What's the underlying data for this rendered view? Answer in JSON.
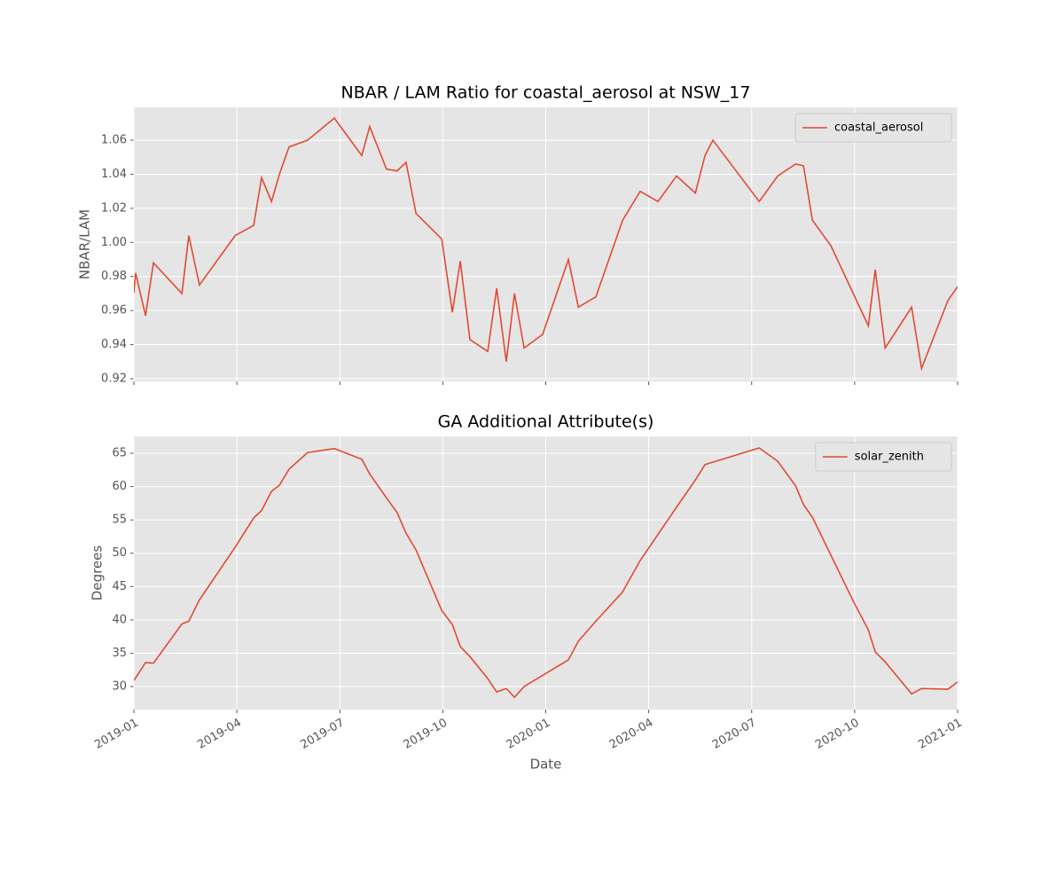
{
  "chart_data": [
    {
      "type": "line",
      "title": "NBAR / LAM Ratio for coastal_aerosol at NSW_17",
      "ylabel": "NBAR/LAM",
      "x": [
        0,
        0.05,
        0.34,
        0.57,
        1.4,
        1.6,
        1.91,
        2.95,
        3.49,
        3.72,
        4.01,
        4.24,
        4.52,
        5.06,
        5.84,
        6.64,
        6.87,
        7.36,
        7.67,
        7.93,
        8.22,
        8.97,
        9.28,
        9.51,
        9.79,
        10.31,
        10.57,
        10.85,
        11.09,
        11.37,
        11.91,
        12.66,
        12.95,
        13.46,
        14.24,
        14.75,
        15.27,
        15.81,
        16.36,
        16.64,
        16.87,
        18.22,
        18.76,
        19.28,
        19.51,
        19.77,
        20.31,
        21.4,
        21.6,
        21.89,
        22.66,
        22.95,
        23.72,
        24.0
      ],
      "series": [
        {
          "name": "coastal_aerosol",
          "color": "#e24a33",
          "values": [
            0.9705,
            0.982,
            0.957,
            0.988,
            0.97,
            1.004,
            0.975,
            1.004,
            1.01,
            1.038,
            1.024,
            1.04,
            1.056,
            1.06,
            1.073,
            1.051,
            1.068,
            1.043,
            1.042,
            1.047,
            1.017,
            1.002,
            0.959,
            0.989,
            0.943,
            0.936,
            0.973,
            0.93,
            0.97,
            0.938,
            0.946,
            0.99,
            0.962,
            0.968,
            1.013,
            1.03,
            1.024,
            1.039,
            1.029,
            1.051,
            1.06,
            1.024,
            1.039,
            1.046,
            1.045,
            1.013,
            0.998,
            0.951,
            0.984,
            0.938,
            0.962,
            0.926,
            0.966,
            0.974
          ]
        }
      ],
      "xlim": [
        0,
        24
      ],
      "ylim": [
        0.9184,
        1.0793
      ],
      "xticks": [
        0,
        3,
        6,
        9,
        12,
        15,
        18,
        21,
        24
      ],
      "yticks": [
        0.92,
        0.94,
        0.96,
        0.98,
        {
          "value": 1,
          "label": "1.00"
        },
        1.02,
        1.04,
        1.06
      ],
      "grid": true,
      "legend": "upper right"
    },
    {
      "type": "line",
      "title": "GA Additional Attribute(s)",
      "ylabel": "Degrees",
      "xlabel": "Date",
      "x": [
        0,
        0.34,
        0.57,
        1.4,
        1.6,
        1.91,
        2.95,
        3.49,
        3.72,
        4.01,
        4.24,
        4.52,
        5.06,
        5.84,
        6.64,
        6.87,
        7.36,
        7.67,
        7.93,
        8.22,
        8.97,
        9.28,
        9.51,
        9.79,
        10.31,
        10.57,
        10.85,
        11.09,
        11.37,
        12.66,
        12.95,
        13.46,
        14.24,
        14.75,
        15.81,
        16.36,
        16.64,
        18.22,
        18.76,
        19.28,
        19.51,
        19.77,
        20.98,
        21.4,
        21.6,
        21.89,
        22.66,
        22.95,
        23.72,
        24.0
      ],
      "series": [
        {
          "name": "solar_zenith",
          "color": "#e24a33",
          "values": [
            30.9,
            33.6,
            33.5,
            39.4,
            39.8,
            43.0,
            50.9,
            55.3,
            56.4,
            59.3,
            60.2,
            62.6,
            65.1,
            65.7,
            64.1,
            61.9,
            58.3,
            56.1,
            53.0,
            50.5,
            41.4,
            39.3,
            36.0,
            34.5,
            31.2,
            29.2,
            29.7,
            28.4,
            30.0,
            34.0,
            36.8,
            39.8,
            44.2,
            48.9,
            56.9,
            61.0,
            63.3,
            65.8,
            63.8,
            60.1,
            57.3,
            55.4,
            42.6,
            38.5,
            35.2,
            33.7,
            28.9,
            29.7,
            29.6,
            30.7
          ]
        }
      ],
      "xlim": [
        0,
        24
      ],
      "ylim": [
        26.54,
        67.53
      ],
      "xticks": [
        {
          "value": 0,
          "label": "2019-01"
        },
        {
          "value": 3,
          "label": "2019-04"
        },
        {
          "value": 6,
          "label": "2019-07"
        },
        {
          "value": 9,
          "label": "2019-10"
        },
        {
          "value": 12,
          "label": "2020-01"
        },
        {
          "value": 15,
          "label": "2020-04"
        },
        {
          "value": 18,
          "label": "2020-07"
        },
        {
          "value": 21,
          "label": "2020-10"
        },
        {
          "value": 24,
          "label": "2021-01"
        }
      ],
      "yticks": [
        30,
        35,
        40,
        45,
        50,
        55,
        60,
        65
      ],
      "grid": true,
      "legend": "upper right"
    }
  ]
}
